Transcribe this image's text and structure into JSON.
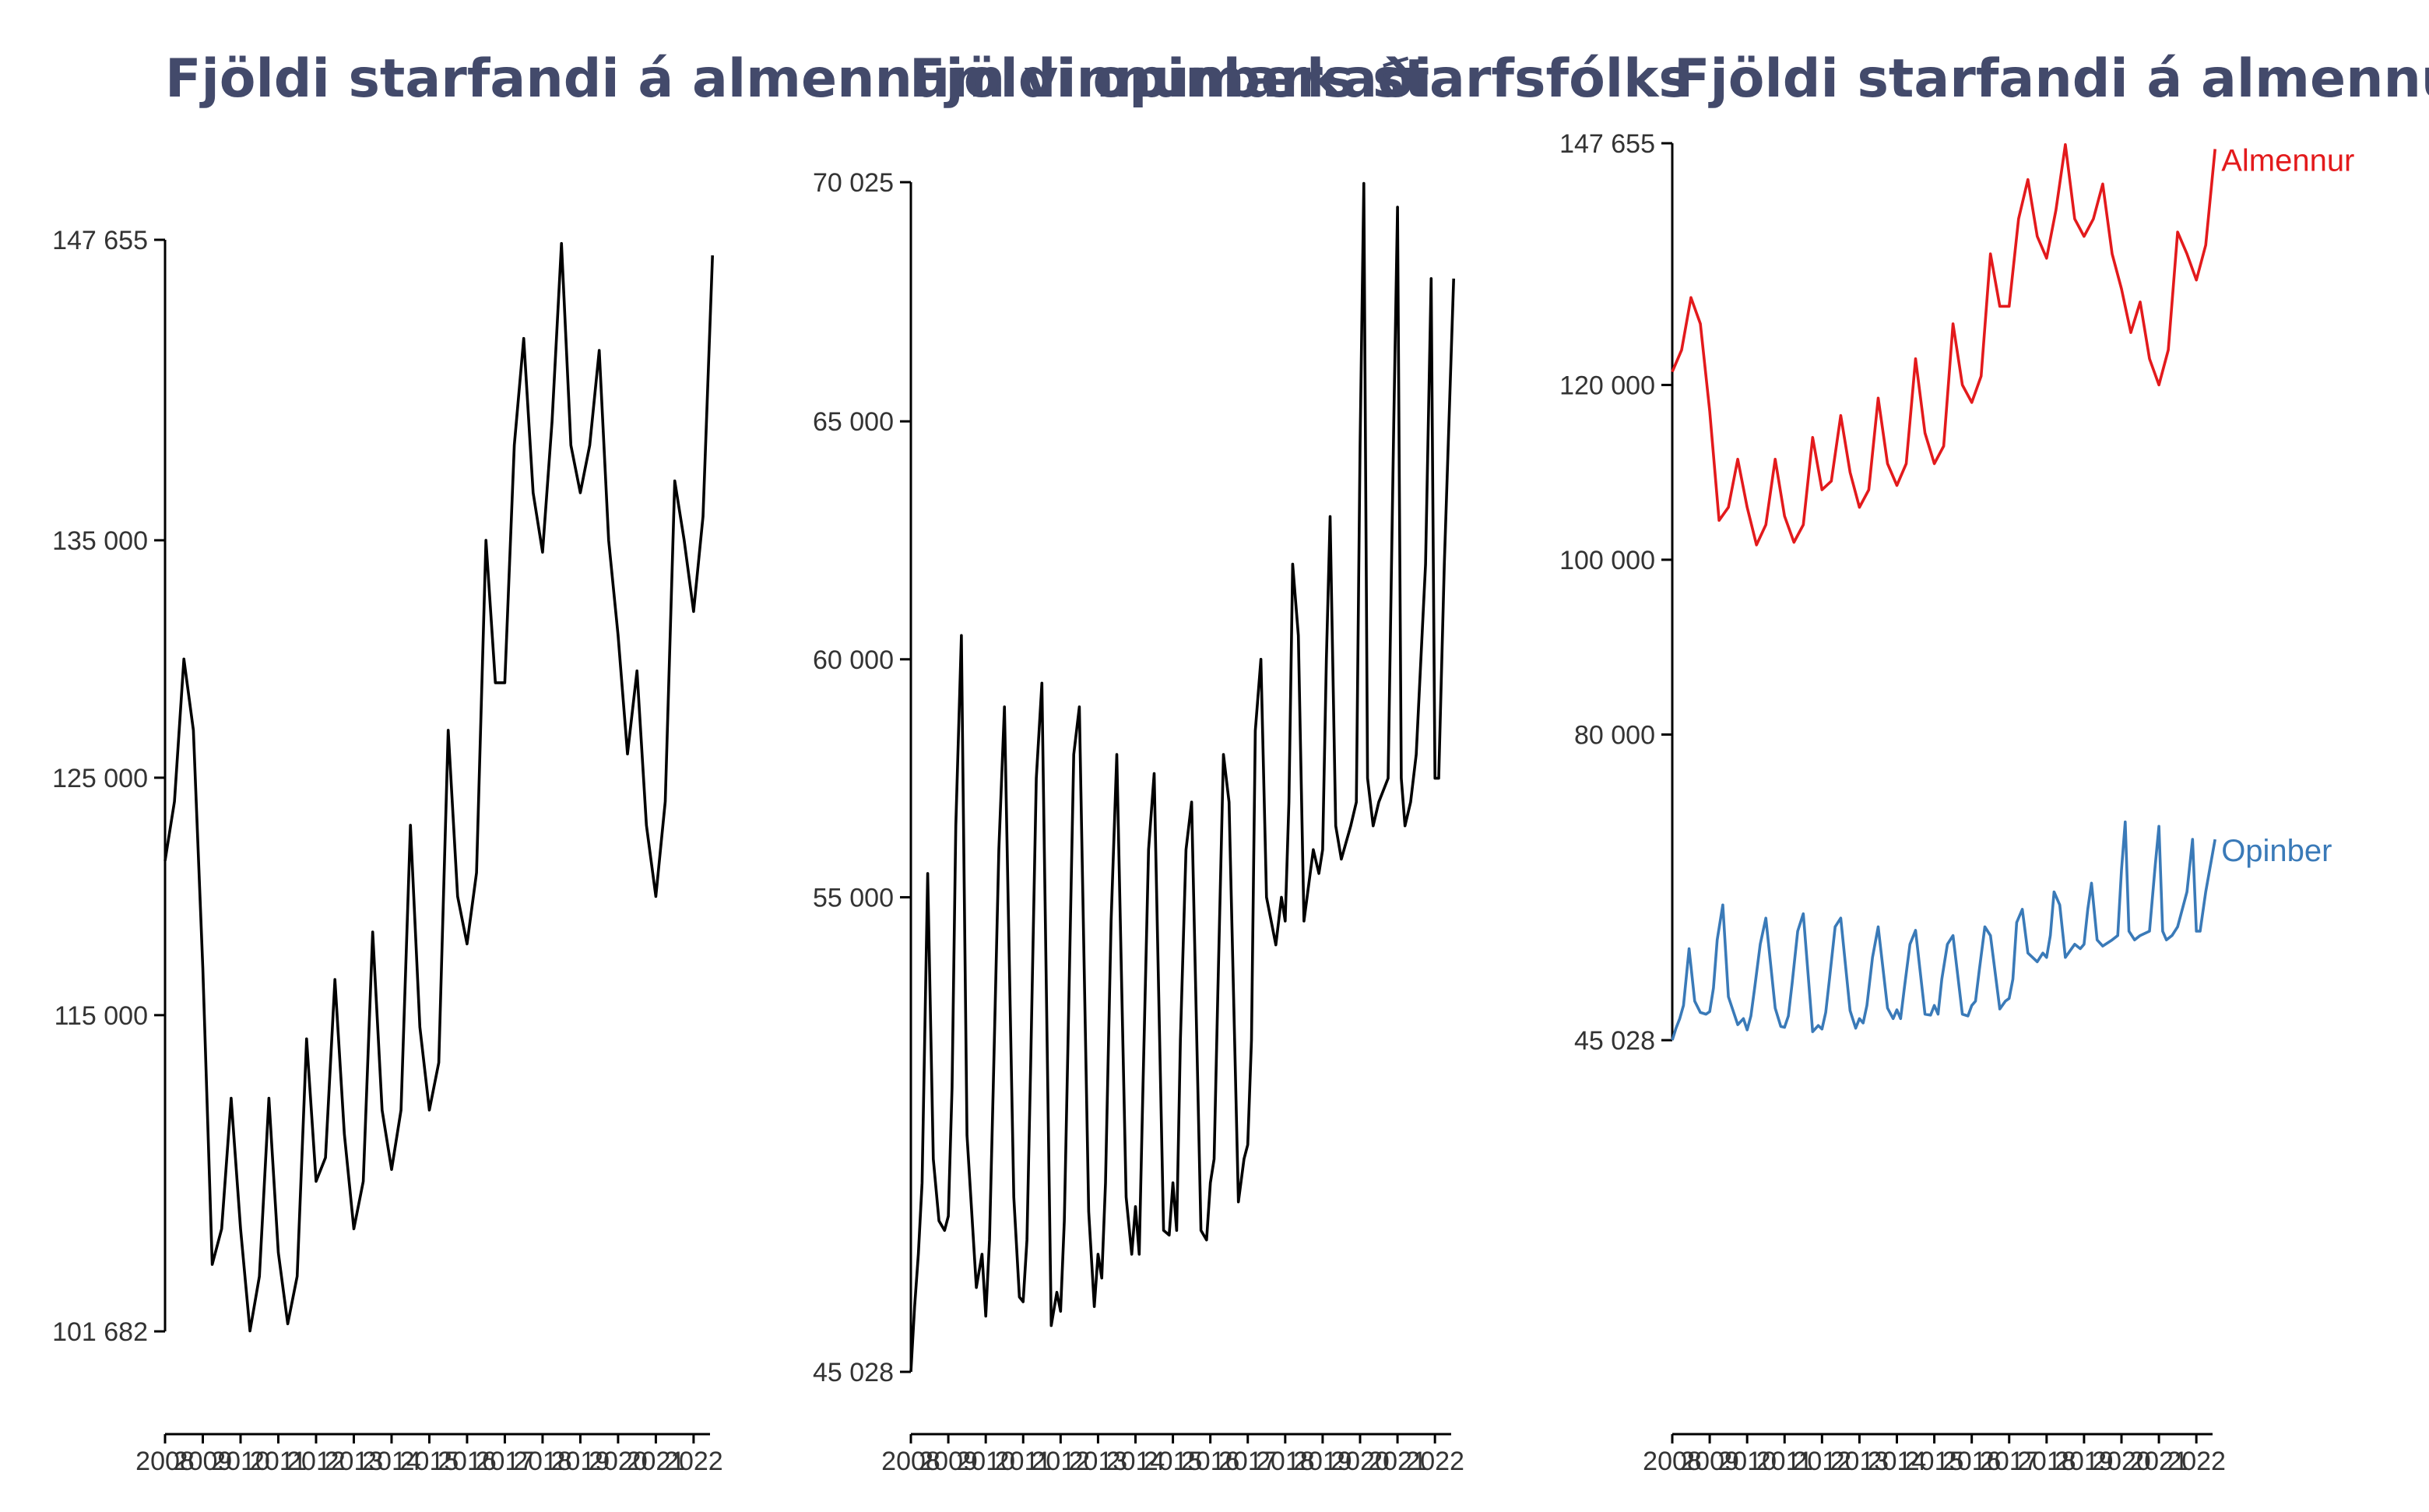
{
  "chart_data": [
    {
      "type": "line",
      "title": "Fjöldi starfandi á almennum vinnumarkaði",
      "xlabel": "",
      "ylabel": "",
      "x_ticks": [
        "2008",
        "2009",
        "2010",
        "2011",
        "2012",
        "2013",
        "2014",
        "2015",
        "2016",
        "2017",
        "2018",
        "2019",
        "2020",
        "2021",
        "2022"
      ],
      "y_ticks": [
        "101 682",
        "115 000",
        "125 000",
        "135 000",
        "147 655"
      ],
      "ylim": [
        101682,
        147655
      ],
      "xlim": [
        2008.0,
        2022.6
      ],
      "grid": false,
      "legend": "none",
      "colors": {
        "line": "#000000"
      },
      "series": [
        {
          "x": [
            2008.0,
            2008.25,
            2008.5,
            2008.75,
            2009.0,
            2009.25,
            2009.5,
            2009.75,
            2010.0,
            2010.25,
            2010.5,
            2010.75,
            2011.0,
            2011.25,
            2011.5,
            2011.75,
            2012.0,
            2012.25,
            2012.5,
            2012.75,
            2013.0,
            2013.25,
            2013.5,
            2013.75,
            2014.0,
            2014.25,
            2014.5,
            2014.75,
            2015.0,
            2015.25,
            2015.5,
            2015.75,
            2016.0,
            2016.25,
            2016.5,
            2016.75,
            2017.0,
            2017.25,
            2017.5,
            2017.75,
            2018.0,
            2018.25,
            2018.5,
            2018.75,
            2019.0,
            2019.25,
            2019.5,
            2019.75,
            2020.0,
            2020.25,
            2020.5,
            2020.75,
            2021.0,
            2021.25,
            2021.5,
            2021.75,
            2022.0,
            2022.25,
            2022.5
          ],
          "values": [
            121500,
            124000,
            130000,
            127000,
            117000,
            104500,
            106000,
            111500,
            106000,
            101700,
            104000,
            111500,
            105000,
            102000,
            104000,
            114000,
            108000,
            109000,
            116500,
            110000,
            106000,
            108000,
            118500,
            111000,
            108500,
            111000,
            123000,
            114500,
            111000,
            113000,
            127000,
            120000,
            118000,
            121000,
            135000,
            129000,
            129000,
            139000,
            143500,
            137000,
            134500,
            140000,
            147500,
            139000,
            137000,
            139000,
            143000,
            135000,
            131000,
            126000,
            129500,
            123000,
            120000,
            124000,
            137500,
            135000,
            132000,
            136000,
            147000
          ]
        }
      ]
    },
    {
      "type": "line",
      "title": "Fjöldi opinbers starfsfólks",
      "xlabel": "",
      "ylabel": "",
      "x_ticks": [
        "2008",
        "2009",
        "2010",
        "2011",
        "2012",
        "2013",
        "2014",
        "2015",
        "2016",
        "2017",
        "2018",
        "2019",
        "2020",
        "2021",
        "2022"
      ],
      "y_ticks": [
        "45 028",
        "55 000",
        "60 000",
        "65 000",
        "70 025"
      ],
      "ylim": [
        45028,
        70025
      ],
      "xlim": [
        2008.0,
        2022.6
      ],
      "grid": false,
      "legend": "none",
      "colors": {
        "line": "#000000"
      },
      "series": [
        {
          "x": [
            2008.0,
            2008.1,
            2008.2,
            2008.3,
            2008.45,
            2008.6,
            2008.75,
            2008.9,
            2009.0,
            2009.1,
            2009.2,
            2009.35,
            2009.5,
            2009.75,
            2009.9,
            2010.0,
            2010.1,
            2010.2,
            2010.35,
            2010.5,
            2010.75,
            2010.9,
            2011.0,
            2011.1,
            2011.2,
            2011.35,
            2011.5,
            2011.75,
            2011.9,
            2012.0,
            2012.1,
            2012.2,
            2012.35,
            2012.5,
            2012.75,
            2012.9,
            2013.0,
            2013.1,
            2013.2,
            2013.35,
            2013.5,
            2013.75,
            2013.9,
            2014.0,
            2014.1,
            2014.2,
            2014.35,
            2014.5,
            2014.75,
            2014.9,
            2015.0,
            2015.1,
            2015.2,
            2015.35,
            2015.5,
            2015.75,
            2015.9,
            2016.0,
            2016.1,
            2016.2,
            2016.35,
            2016.5,
            2016.75,
            2016.9,
            2017.0,
            2017.1,
            2017.2,
            2017.35,
            2017.5,
            2017.75,
            2017.9,
            2018.0,
            2018.1,
            2018.2,
            2018.35,
            2018.5,
            2018.75,
            2018.9,
            2019.0,
            2019.1,
            2019.2,
            2019.35,
            2019.5,
            2019.75,
            2019.9,
            2020.0,
            2020.1,
            2020.2,
            2020.35,
            2020.5,
            2020.75,
            2020.9,
            2021.0,
            2021.1,
            2021.2,
            2021.35,
            2021.5,
            2021.75,
            2021.9,
            2022.0,
            2022.1,
            2022.25,
            2022.5
          ],
          "values": [
            45028,
            46400,
            47500,
            49000,
            55500,
            49500,
            48200,
            48000,
            48300,
            51000,
            56500,
            60500,
            50000,
            46800,
            47500,
            46200,
            47800,
            51000,
            56000,
            59000,
            48700,
            46600,
            46500,
            47800,
            51500,
            57500,
            59500,
            46000,
            46700,
            46300,
            48200,
            52000,
            58000,
            59000,
            48400,
            46400,
            47500,
            47000,
            49000,
            54500,
            58000,
            48700,
            47500,
            48500,
            47500,
            51000,
            56000,
            57600,
            48000,
            47900,
            49000,
            48000,
            52000,
            56000,
            57000,
            48000,
            47800,
            49000,
            49500,
            53000,
            58000,
            57000,
            48600,
            49500,
            49800,
            52000,
            58500,
            60000,
            55000,
            54000,
            55000,
            54500,
            57000,
            62000,
            60500,
            54500,
            56000,
            55500,
            56000,
            60000,
            63000,
            56500,
            55800,
            56500,
            57000,
            64500,
            70000,
            57500,
            56500,
            57000,
            57500,
            65000,
            69500,
            57500,
            56500,
            57000,
            58000,
            62000,
            68000,
            57500,
            57500,
            62000,
            68000
          ]
        }
      ]
    },
    {
      "type": "line",
      "title": "Fjöldi starfandi á almennum og opinberum vinnumarkaði",
      "xlabel": "",
      "ylabel": "",
      "x_ticks": [
        "2008",
        "2009",
        "2010",
        "2011",
        "2012",
        "2013",
        "2014",
        "2015",
        "2016",
        "2017",
        "2018",
        "2019",
        "2020",
        "2021",
        "2022"
      ],
      "y_ticks": [
        "45 028",
        "80 000",
        "100 000",
        "120 000",
        "147 655"
      ],
      "ylim": [
        45028,
        147655
      ],
      "xlim": [
        2008.0,
        2022.6
      ],
      "grid": false,
      "legend": "inline labels at line ends",
      "colors": {
        "Almennur": "#e31a1c",
        "Opinber": "#3a7ab8",
        "axis": "#000000"
      },
      "series": [
        {
          "name": "Almennur",
          "x": [
            2008.0,
            2008.25,
            2008.5,
            2008.75,
            2009.0,
            2009.25,
            2009.5,
            2009.75,
            2010.0,
            2010.25,
            2010.5,
            2010.75,
            2011.0,
            2011.25,
            2011.5,
            2011.75,
            2012.0,
            2012.25,
            2012.5,
            2012.75,
            2013.0,
            2013.25,
            2013.5,
            2013.75,
            2014.0,
            2014.25,
            2014.5,
            2014.75,
            2015.0,
            2015.25,
            2015.5,
            2015.75,
            2016.0,
            2016.25,
            2016.5,
            2016.75,
            2017.0,
            2017.25,
            2017.5,
            2017.75,
            2018.0,
            2018.25,
            2018.5,
            2018.75,
            2019.0,
            2019.25,
            2019.5,
            2019.75,
            2020.0,
            2020.25,
            2020.5,
            2020.75,
            2021.0,
            2021.25,
            2021.5,
            2021.75,
            2022.0,
            2022.25,
            2022.5
          ],
          "values": [
            121500,
            124000,
            130000,
            127000,
            117000,
            104500,
            106000,
            111500,
            106000,
            101700,
            104000,
            111500,
            105000,
            102000,
            104000,
            114000,
            108000,
            109000,
            116500,
            110000,
            106000,
            108000,
            118500,
            111000,
            108500,
            111000,
            123000,
            114500,
            111000,
            113000,
            127000,
            120000,
            118000,
            121000,
            135000,
            129000,
            129000,
            139000,
            143500,
            137000,
            134500,
            140000,
            147500,
            139000,
            137000,
            139000,
            143000,
            135000,
            131000,
            126000,
            129500,
            123000,
            120000,
            124000,
            137500,
            135000,
            132000,
            136000,
            147000
          ]
        },
        {
          "name": "Opinber",
          "x": [
            2008.0,
            2008.1,
            2008.2,
            2008.3,
            2008.45,
            2008.6,
            2008.75,
            2008.9,
            2009.0,
            2009.1,
            2009.2,
            2009.35,
            2009.5,
            2009.75,
            2009.9,
            2010.0,
            2010.1,
            2010.2,
            2010.35,
            2010.5,
            2010.75,
            2010.9,
            2011.0,
            2011.1,
            2011.2,
            2011.35,
            2011.5,
            2011.75,
            2011.9,
            2012.0,
            2012.1,
            2012.2,
            2012.35,
            2012.5,
            2012.75,
            2012.9,
            2013.0,
            2013.1,
            2013.2,
            2013.35,
            2013.5,
            2013.75,
            2013.9,
            2014.0,
            2014.1,
            2014.2,
            2014.35,
            2014.5,
            2014.75,
            2014.9,
            2015.0,
            2015.1,
            2015.2,
            2015.35,
            2015.5,
            2015.75,
            2015.9,
            2016.0,
            2016.1,
            2016.2,
            2016.35,
            2016.5,
            2016.75,
            2016.9,
            2017.0,
            2017.1,
            2017.2,
            2017.35,
            2017.5,
            2017.75,
            2017.9,
            2018.0,
            2018.1,
            2018.2,
            2018.35,
            2018.5,
            2018.75,
            2018.9,
            2019.0,
            2019.1,
            2019.2,
            2019.35,
            2019.5,
            2019.75,
            2019.9,
            2020.0,
            2020.1,
            2020.2,
            2020.35,
            2020.5,
            2020.75,
            2020.9,
            2021.0,
            2021.1,
            2021.2,
            2021.35,
            2021.5,
            2021.75,
            2021.9,
            2022.0,
            2022.1,
            2022.25,
            2022.5
          ],
          "values": [
            45028,
            46400,
            47500,
            49000,
            55500,
            49500,
            48200,
            48000,
            48300,
            51000,
            56500,
            60500,
            50000,
            46800,
            47500,
            46200,
            47800,
            51000,
            56000,
            59000,
            48700,
            46600,
            46500,
            47800,
            51500,
            57500,
            59500,
            46000,
            46700,
            46300,
            48200,
            52000,
            58000,
            59000,
            48400,
            46400,
            47500,
            47000,
            49000,
            54500,
            58000,
            48700,
            47500,
            48500,
            47500,
            51000,
            56000,
            57600,
            48000,
            47900,
            49000,
            48000,
            52000,
            56000,
            57000,
            48000,
            47800,
            49000,
            49500,
            53000,
            58000,
            57000,
            48600,
            49500,
            49800,
            52000,
            58500,
            60000,
            55000,
            54000,
            55000,
            54500,
            57000,
            62000,
            60500,
            54500,
            56000,
            55500,
            56000,
            60000,
            63000,
            56500,
            55800,
            56500,
            57000,
            64500,
            70000,
            57500,
            56500,
            57000,
            57500,
            65000,
            69500,
            57500,
            56500,
            57000,
            58000,
            62000,
            68000,
            57500,
            57500,
            62000,
            68000
          ]
        }
      ]
    }
  ]
}
